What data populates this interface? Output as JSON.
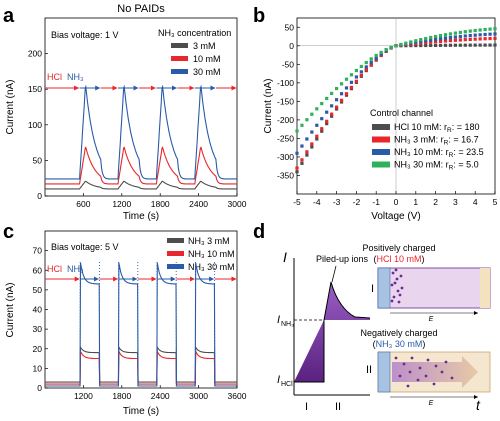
{
  "header": {
    "top_title": "No PAIDs"
  },
  "panel_a": {
    "label": "a",
    "bias": "Bias voltage: 1 V",
    "legend_title": "NH₃ concentration",
    "arrow_hcl": "HCl",
    "arrow_nh3": "NH₃",
    "colors": {
      "3 mM": "#4d4d4d",
      "10 mM": "#e8262b",
      "30 mM": "#2a5ba8"
    },
    "chart_data": {
      "type": "line",
      "xlabel": "Time (s)",
      "ylabel": "Current (nA)",
      "xlim": [
        0,
        3000
      ],
      "ylim": [
        0,
        250
      ],
      "xticks": [
        600,
        1200,
        1800,
        2400,
        3000
      ],
      "yticks": [
        0,
        50,
        100,
        150,
        200
      ],
      "switch_times_nh3": [
        540,
        1140,
        1740,
        2340
      ],
      "switch_times_hcl": [
        870,
        1470,
        2070,
        2670
      ],
      "series": [
        {
          "name": "3 mM",
          "baseline": 10,
          "peak": 21,
          "plateau": 15
        },
        {
          "name": "10 mM",
          "baseline": 17,
          "peak": 70,
          "plateau": 48
        },
        {
          "name": "30 mM",
          "baseline": 24,
          "peak": 158,
          "plateau": 80
        }
      ]
    }
  },
  "panel_b": {
    "label": "b",
    "legend_title": "Control channel",
    "colors": [
      "#4d4d4d",
      "#e8262b",
      "#2a5ba8",
      "#2fb05a"
    ],
    "chart_data": {
      "type": "scatter",
      "xlabel": "Voltage (V)",
      "ylabel": "Current (nA)",
      "xlim": [
        -5,
        5
      ],
      "ylim": [
        -400,
        75
      ],
      "xticks": [
        -5,
        -4,
        -3,
        -2,
        -1,
        0,
        1,
        2,
        3,
        4,
        5
      ],
      "yticks": [
        -350,
        -300,
        -250,
        -200,
        -150,
        -100,
        -50,
        0,
        50
      ],
      "series": [
        {
          "name": "HCl 10 mM: r",
          "r": "= 180",
          "y_at_-5": -340,
          "y_at_5": 2
        },
        {
          "name": "NH₃ 3 mM: r",
          "r": "= 16.7",
          "y_at_-5": -330,
          "y_at_5": 20
        },
        {
          "name": "NH₃ 10 mM: r",
          "r": "= 23.5",
          "y_at_-5": -290,
          "y_at_5": 32
        },
        {
          "name": "NH₃ 30 mM: r",
          "r": "= 5.0",
          "y_at_-5": -230,
          "y_at_5": 46
        }
      ]
    }
  },
  "panel_c": {
    "label": "c",
    "bias": "Bias voltage: 5 V",
    "arrow_hcl": "HCl",
    "arrow_nh3": "NH₃",
    "colors": {
      "NH₃ 3 mM": "#4d4d4d",
      "NH₃ 10 mM": "#e8262b",
      "NH₃ 30 mM": "#2a5ba8"
    },
    "chart_data": {
      "type": "line",
      "xlabel": "Time (s)",
      "ylabel": "Current (nA)",
      "xlim": [
        600,
        3600
      ],
      "ylim": [
        0,
        80
      ],
      "xticks": [
        1200,
        1800,
        2400,
        3000,
        3600
      ],
      "yticks": [
        0,
        10,
        20,
        30,
        40,
        50,
        60,
        70
      ],
      "switch_times_nh3": [
        1150,
        1750,
        2350,
        2950
      ],
      "switch_times_hcl": [
        1450,
        2050,
        2650,
        3250
      ],
      "series": [
        {
          "name": "NH₃ 3 mM",
          "baseline": 3,
          "peak": 21,
          "plateau": 18
        },
        {
          "name": "NH₃ 10 mM",
          "baseline": 2,
          "peak": 19,
          "plateau": 15
        },
        {
          "name": "NH₃ 30 mM",
          "baseline": 1,
          "peak": 65,
          "plateau": 53
        }
      ]
    }
  },
  "panel_d": {
    "label": "d",
    "ylabel": "I",
    "xlabel": "t",
    "piled": "Piled-up ions",
    "i_nh3": "I",
    "i_nh3_sub": "NH₃",
    "i_hcl": "I",
    "i_hcl_sub": "HCl",
    "phase1": "I",
    "phase2": "II",
    "box1": {
      "roman": "I",
      "title": "Positively charged",
      "sub_pre": "(",
      "sub": "HCl 10 mM",
      "sub_post": ")",
      "field": "E"
    },
    "box2": {
      "roman": "II",
      "title": "Negatively charged",
      "sub_pre": "(",
      "sub": "NH₃ 30 mM",
      "sub_post": ")",
      "field": "E"
    },
    "colors": {
      "purple": "#6a2c91",
      "hcl": "#e8262b",
      "nh3": "#2a5ba8"
    }
  }
}
